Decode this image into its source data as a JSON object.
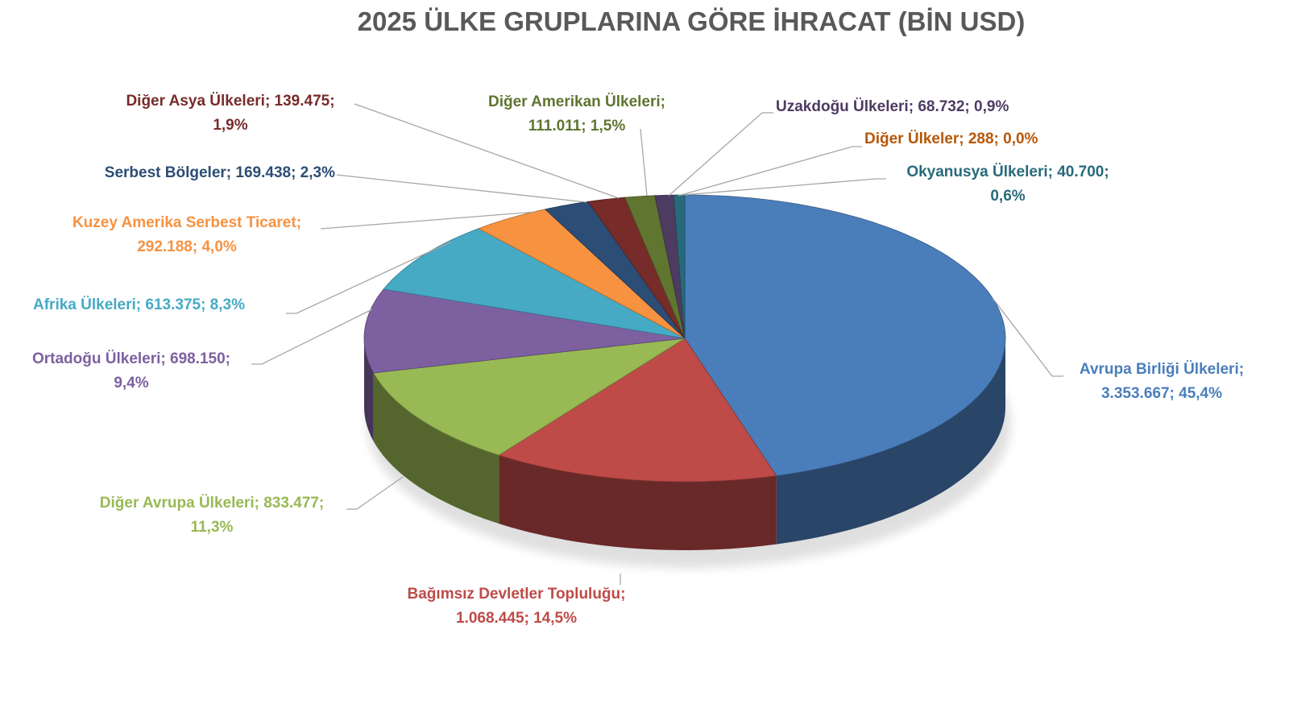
{
  "chart_data": {
    "type": "pie",
    "style": "3d",
    "title": "2025 ÜLKE GRUPLARINA GÖRE İHRACAT (BİN USD)",
    "unit": "BİN USD",
    "start_angle": "top",
    "direction": "clockwise",
    "slices": [
      {
        "name": "Avrupa Birliği Ülkeleri",
        "value": 3353667,
        "value_label": "3.353.667",
        "percent_label": "45,4%",
        "percent": 45.4,
        "color": "#4a7ebb",
        "label_color": "#4a7ebb"
      },
      {
        "name": "Bağımsız Devletler Topluluğu",
        "value": 1068445,
        "value_label": "1.068.445",
        "percent_label": "14,5%",
        "percent": 14.5,
        "color": "#be4b48",
        "label_color": "#be4b48"
      },
      {
        "name": "Diğer Avrupa Ülkeleri",
        "value": 833477,
        "value_label": "833.477",
        "percent_label": "11,3%",
        "percent": 11.3,
        "color": "#98b954",
        "label_color": "#98b954"
      },
      {
        "name": "Ortadoğu Ülkeleri",
        "value": 698150,
        "value_label": "698.150",
        "percent_label": "9,4%",
        "percent": 9.4,
        "color": "#7d60a0",
        "label_color": "#7d60a0"
      },
      {
        "name": "Afrika Ülkeleri",
        "value": 613375,
        "value_label": "613.375",
        "percent_label": "8,3%",
        "percent": 8.3,
        "color": "#46aac5",
        "label_color": "#46aac5"
      },
      {
        "name": "Kuzey Amerika Serbest Ticaret",
        "value": 292188,
        "value_label": "292.188",
        "percent_label": "4,0%",
        "percent": 4.0,
        "color": "#f69240",
        "label_color": "#f69240"
      },
      {
        "name": "Serbest Bölgeler",
        "value": 169438,
        "value_label": "169.438",
        "percent_label": "2,3%",
        "percent": 2.3,
        "color": "#2c4d75",
        "label_color": "#2c4d75"
      },
      {
        "name": "Diğer Asya Ülkeleri",
        "value": 139475,
        "value_label": "139.475",
        "percent_label": "1,9%",
        "percent": 1.9,
        "color": "#772c2a",
        "label_color": "#772c2a"
      },
      {
        "name": "Diğer Amerikan Ülkeleri",
        "value": 111011,
        "value_label": "111.011",
        "percent_label": "1,5%",
        "percent": 1.5,
        "color": "#5f7530",
        "label_color": "#5f7530"
      },
      {
        "name": "Uzakdoğu Ülkeleri",
        "value": 68732,
        "value_label": "68.732",
        "percent_label": "0,9%",
        "percent": 0.9,
        "color": "#4d3b62",
        "label_color": "#4d3b62"
      },
      {
        "name": "Diğer Ülkeler",
        "value": 288,
        "value_label": "288",
        "percent_label": "0,0%",
        "percent": 0.0,
        "color": "#b65708",
        "label_color": "#b65708"
      },
      {
        "name": "Okyanusya Ülkeleri",
        "value": 40700,
        "value_label": "40.700",
        "percent_label": "0,6%",
        "percent": 0.6,
        "color": "#276a7c",
        "label_color": "#276a7c"
      }
    ],
    "labels": {
      "eu": [
        "Avrupa Birliği Ülkeleri;",
        "3.353.667; 45,4%"
      ],
      "bdt": [
        "Bağımsız Devletler Topluluğu;",
        "1.068.445; 14,5%"
      ],
      "oeu": [
        "Diğer Avrupa Ülkeleri; 833.477;",
        "11,3%"
      ],
      "me": [
        "Ortadoğu Ülkeleri; 698.150;",
        "9,4%"
      ],
      "af": [
        "Afrika Ülkeleri; 613.375; 8,3%"
      ],
      "na": [
        "Kuzey Amerika Serbest Ticaret;",
        "292.188; 4,0%"
      ],
      "fz": [
        "Serbest Bölgeler; 169.438; 2,3%"
      ],
      "as": [
        "Diğer Asya Ülkeleri; 139.475;",
        "1,9%"
      ],
      "am": [
        "Diğer Amerikan Ülkeleri;",
        "111.011; 1,5%"
      ],
      "fe": [
        "Uzakdoğu Ülkeleri; 68.732; 0,9%"
      ],
      "ot": [
        "Diğer Ülkeler; 288; 0,0%"
      ],
      "oc": [
        "Okyanusya Ülkeleri; 40.700;",
        "0,6%"
      ]
    }
  }
}
